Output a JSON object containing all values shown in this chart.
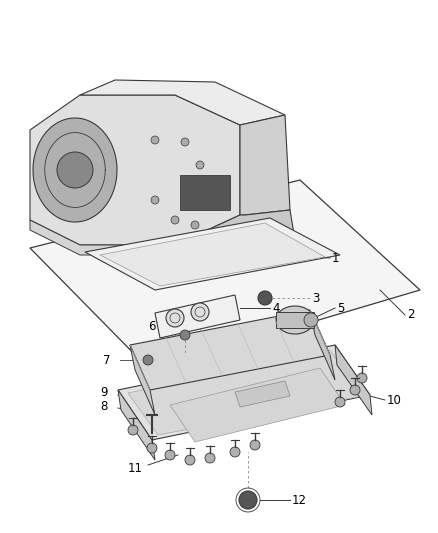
{
  "background_color": "#ffffff",
  "line_color": "#3a3a3a",
  "label_color": "#000000",
  "label_fontsize": 8.5,
  "fig_width": 4.38,
  "fig_height": 5.33,
  "dpi": 100,
  "transmission_case": {
    "fill": "#e8e8e8",
    "fill_top": "#f0f0f0",
    "fill_right": "#d0d0d0",
    "fill_bell": "#c8c8c8"
  },
  "gasket_fill": "#f2f2f2",
  "plate_fill": "#f8f8f8",
  "pan_fill": "#e5e5e5",
  "valve_fill": "#d8d8d8"
}
